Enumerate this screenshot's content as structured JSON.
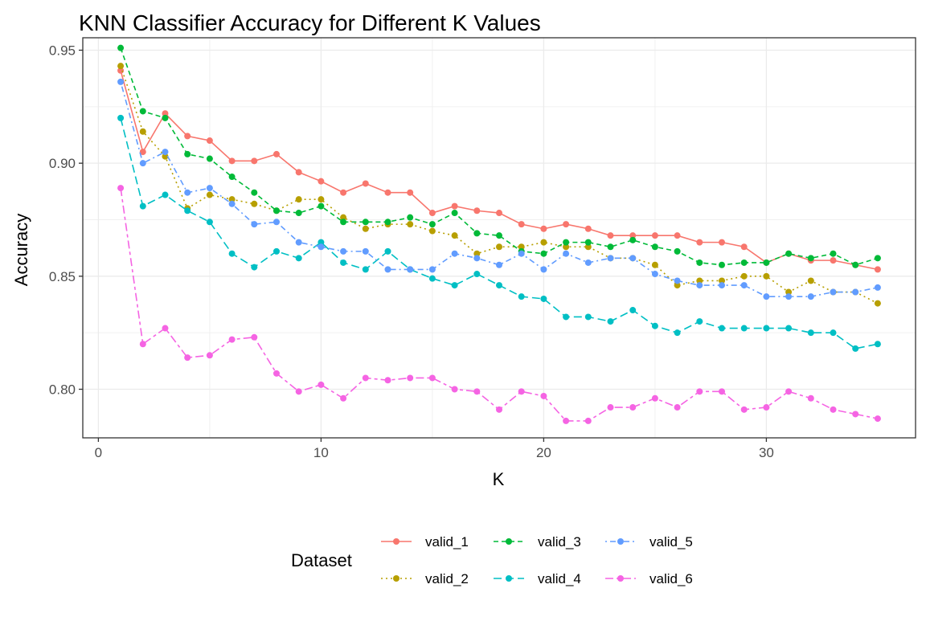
{
  "chart_data": {
    "type": "line",
    "title": "KNN Classifier Accuracy for Different K Values",
    "xlabel": "K",
    "ylabel": "Accuracy",
    "xlim": [
      -0.7,
      36.7
    ],
    "ylim": [
      0.7785,
      0.9555
    ],
    "x_ticks": [
      0,
      10,
      20,
      30
    ],
    "y_ticks": [
      0.8,
      0.85,
      0.9,
      0.95
    ],
    "y_tick_labels": [
      "0.80",
      "0.85",
      "0.90",
      "0.95"
    ],
    "grid": true,
    "legend": {
      "title": "Dataset",
      "position": "bottom"
    },
    "x": [
      1,
      2,
      3,
      4,
      5,
      6,
      7,
      8,
      9,
      10,
      11,
      12,
      13,
      14,
      15,
      16,
      17,
      18,
      19,
      20,
      21,
      22,
      23,
      24,
      25,
      26,
      27,
      28,
      29,
      30,
      31,
      32,
      33,
      34,
      35
    ],
    "series": [
      {
        "name": "valid_1",
        "color": "#F8766D",
        "dash": "solid",
        "values": [
          0.941,
          0.905,
          0.922,
          0.912,
          0.91,
          0.901,
          0.901,
          0.904,
          0.896,
          0.892,
          0.887,
          0.891,
          0.887,
          0.887,
          0.878,
          0.881,
          0.879,
          0.878,
          0.873,
          0.871,
          0.873,
          0.871,
          0.868,
          0.868,
          0.868,
          0.868,
          0.865,
          0.865,
          0.863,
          0.856,
          0.86,
          0.857,
          0.857,
          0.855,
          0.853
        ]
      },
      {
        "name": "valid_2",
        "color": "#B79F00",
        "dash": "dotted",
        "values": [
          0.943,
          0.914,
          0.903,
          0.88,
          0.886,
          0.884,
          0.882,
          0.879,
          0.884,
          0.884,
          0.876,
          0.871,
          0.873,
          0.873,
          0.87,
          0.868,
          0.86,
          0.863,
          0.863,
          0.865,
          0.863,
          0.863,
          0.858,
          0.858,
          0.855,
          0.846,
          0.848,
          0.848,
          0.85,
          0.85,
          0.843,
          0.848,
          0.843,
          0.843,
          0.838
        ]
      },
      {
        "name": "valid_3",
        "color": "#00BA38",
        "dash": "dashed",
        "values": [
          0.951,
          0.923,
          0.92,
          0.904,
          0.902,
          0.894,
          0.887,
          0.879,
          0.878,
          0.881,
          0.874,
          0.874,
          0.874,
          0.876,
          0.873,
          0.878,
          0.869,
          0.868,
          0.861,
          0.86,
          0.865,
          0.865,
          0.863,
          0.866,
          0.863,
          0.861,
          0.856,
          0.855,
          0.856,
          0.856,
          0.86,
          0.858,
          0.86,
          0.855,
          0.858
        ]
      },
      {
        "name": "valid_4",
        "color": "#00BFC4",
        "dash": "longdash",
        "values": [
          0.92,
          0.881,
          0.886,
          0.879,
          0.874,
          0.86,
          0.854,
          0.861,
          0.858,
          0.865,
          0.856,
          0.853,
          0.861,
          0.853,
          0.849,
          0.846,
          0.851,
          0.846,
          0.841,
          0.84,
          0.832,
          0.832,
          0.83,
          0.835,
          0.828,
          0.825,
          0.83,
          0.827,
          0.827,
          0.827,
          0.827,
          0.825,
          0.825,
          0.818,
          0.82
        ]
      },
      {
        "name": "valid_5",
        "color": "#619CFF",
        "dash": "dotdash",
        "values": [
          0.936,
          0.9,
          0.905,
          0.887,
          0.889,
          0.882,
          0.873,
          0.874,
          0.865,
          0.863,
          0.861,
          0.861,
          0.853,
          0.853,
          0.853,
          0.86,
          0.858,
          0.855,
          0.86,
          0.853,
          0.86,
          0.856,
          0.858,
          0.858,
          0.851,
          0.848,
          0.846,
          0.846,
          0.846,
          0.841,
          0.841,
          0.841,
          0.843,
          0.843,
          0.845
        ]
      },
      {
        "name": "valid_6",
        "color": "#F564E3",
        "dash": "twodash",
        "values": [
          0.889,
          0.82,
          0.827,
          0.814,
          0.815,
          0.822,
          0.823,
          0.807,
          0.799,
          0.802,
          0.796,
          0.805,
          0.804,
          0.805,
          0.805,
          0.8,
          0.799,
          0.791,
          0.799,
          0.797,
          0.786,
          0.786,
          0.792,
          0.792,
          0.796,
          0.792,
          0.799,
          0.799,
          0.791,
          0.792,
          0.799,
          0.796,
          0.791,
          0.789,
          0.787
        ]
      }
    ]
  }
}
